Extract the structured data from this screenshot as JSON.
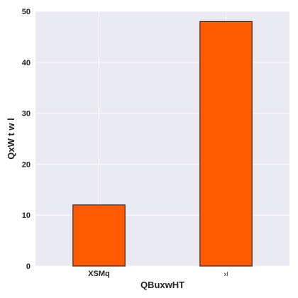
{
  "chart_data": {
    "type": "bar",
    "categories": [
      "XSMq",
      "xl"
    ],
    "values": [
      12,
      48
    ],
    "title": "",
    "xlabel": "QBuxwHT",
    "ylabel": "QxW t w l",
    "ylim": [
      0,
      50
    ],
    "yticks": [
      "0",
      "10",
      "20",
      "30",
      "40",
      "50"
    ],
    "grid": true,
    "bar_color": "#ff5a00",
    "bar_edge_color": "#111111",
    "plot_background": "#eaeaf2",
    "grid_color": "#ffffff"
  }
}
